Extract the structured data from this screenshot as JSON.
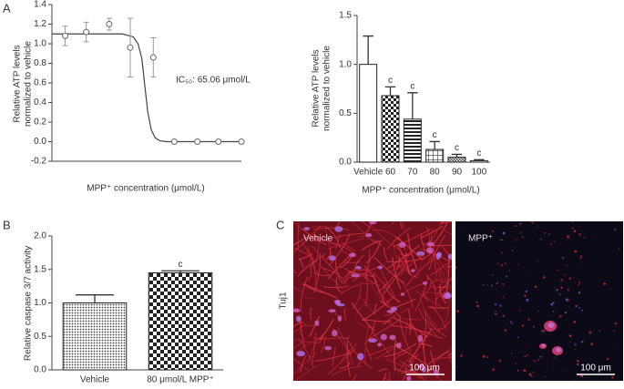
{
  "chart_data": [
    {
      "type": "scatter",
      "panel": "A",
      "ylabel": [
        "Relative ATP levels",
        "normalized to vehicle"
      ],
      "xlabel": "MPP⁺ concentration (μmol/L)",
      "annotation": "IC₅₀: 65.06 μmol/L",
      "xscale": "log",
      "xlim": [
        0.5,
        10000
      ],
      "ylim": [
        -0.2,
        1.4
      ],
      "yticks": [
        -0.2,
        {
          "value": 0,
          "label": "0.0"
        },
        0.2,
        0.4,
        0.6,
        0.8,
        {
          "value": 1,
          "label": "1.0"
        },
        1.2,
        1.4
      ],
      "series": [
        {
          "color": "#666666",
          "x": [
            1,
            3,
            10,
            30,
            100,
            300,
            1000,
            3000,
            10000
          ],
          "values": [
            1.08,
            1.12,
            1.2,
            0.96,
            0.86,
            0,
            0,
            0,
            0
          ],
          "errors": [
            0.1,
            0.1,
            0.06,
            0.3,
            0.2,
            0,
            0,
            0,
            0
          ]
        }
      ],
      "fit": {
        "color": "#444444",
        "x": [
          0.5,
          20,
          35,
          45,
          55,
          65,
          75,
          90,
          110,
          140,
          200,
          10000
        ],
        "values": [
          1.1,
          1.1,
          1.07,
          1.0,
          0.85,
          0.55,
          0.3,
          0.12,
          0.04,
          0.01,
          0,
          0
        ]
      }
    },
    {
      "type": "bar",
      "ylabel": [
        "Relative ATP levels",
        "normalized to vehicle"
      ],
      "xlabel": "MPP⁺ concentration (μmol/L)",
      "categories": [
        "Vehicle",
        "60",
        "70",
        "80",
        "90",
        "100"
      ],
      "values": [
        1.0,
        0.68,
        0.44,
        0.13,
        0.05,
        0.015
      ],
      "errors": [
        0.29,
        0.09,
        0.27,
        0.08,
        0.03,
        0.01
      ],
      "annotations": [
        null,
        "c",
        "c",
        "c",
        "c",
        "c"
      ],
      "ylim": [
        0,
        1.5
      ],
      "yticks": [
        {
          "value": 0,
          "label": "0.0"
        },
        0.5,
        {
          "value": 1,
          "label": "1.0"
        },
        1.5
      ]
    },
    {
      "type": "bar",
      "panel": "B",
      "ylabel": [
        "Relative caspase 3/7 activity"
      ],
      "categories": [
        "Vehicle",
        "80 μmol/L MPP⁺"
      ],
      "values": [
        1.0,
        1.45
      ],
      "errors": [
        0.12,
        0.03
      ],
      "annotations": [
        null,
        "c"
      ],
      "ylim": [
        0,
        2
      ],
      "yticks": [
        {
          "value": 0,
          "label": "0.0"
        },
        0.5,
        {
          "value": 1,
          "label": "1.0"
        },
        1.5,
        {
          "value": 2,
          "label": "2.0"
        }
      ]
    }
  ],
  "images": {
    "panel": "C",
    "row_label": "Tuj1",
    "panels": [
      {
        "label": "Vehicle",
        "scale_bar": "100 μm"
      },
      {
        "label": "MPP⁺",
        "scale_bar": "100 μm"
      }
    ]
  }
}
